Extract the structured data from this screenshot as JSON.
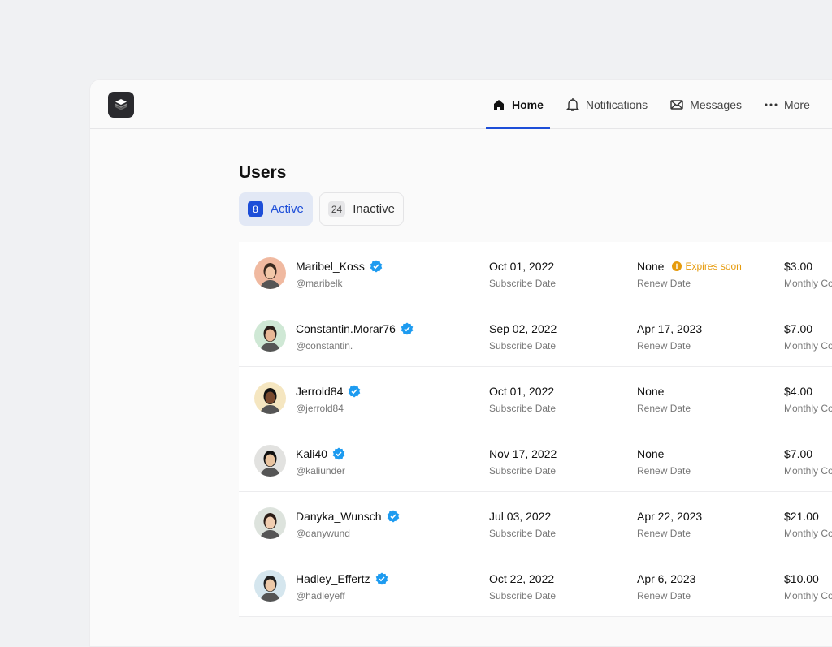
{
  "nav": {
    "items": [
      {
        "label": "Home",
        "icon": "home-icon",
        "active": true
      },
      {
        "label": "Notifications",
        "icon": "bell-icon"
      },
      {
        "label": "Messages",
        "icon": "envelope-icon"
      },
      {
        "label": "More",
        "icon": "more-icon"
      }
    ]
  },
  "page": {
    "title": "Users"
  },
  "tabs": [
    {
      "count": "8",
      "label": "Active",
      "active": true
    },
    {
      "count": "24",
      "label": "Inactive"
    }
  ],
  "columns": {
    "subscribe": "Subscribe Date",
    "renew": "Renew Date",
    "cost": "Monthly Cost"
  },
  "expires_label": "Expires soon",
  "colors": {
    "accent": "#1d4ed8",
    "verified": "#1d9bf0",
    "warning": "#e69b0d"
  },
  "users": [
    {
      "name": "Maribel_Koss",
      "handle": "@maribelk",
      "subscribe": "Oct 01, 2022",
      "renew": "None",
      "expires": true,
      "cost": "$3.00",
      "avatar_bg": "#f0b9a0"
    },
    {
      "name": "Constantin.Morar76",
      "handle": "@constantin.",
      "subscribe": "Sep 02, 2022",
      "renew": "Apr 17, 2023",
      "cost": "$7.00",
      "avatar_bg": "#cfe8d5"
    },
    {
      "name": "Jerrold84",
      "handle": "@jerrold84",
      "subscribe": "Oct 01, 2022",
      "renew": "None",
      "cost": "$4.00",
      "avatar_bg": "#f5e6c0"
    },
    {
      "name": "Kali40",
      "handle": "@kaliunder",
      "subscribe": "Nov 17, 2022",
      "renew": "None",
      "cost": "$7.00",
      "avatar_bg": "#e2e2e0"
    },
    {
      "name": "Danyka_Wunsch",
      "handle": "@danywund",
      "subscribe": "Jul 03, 2022",
      "renew": "Apr 22, 2023",
      "cost": "$21.00",
      "avatar_bg": "#dde3dd"
    },
    {
      "name": "Hadley_Effertz",
      "handle": "@hadleyeff",
      "subscribe": "Oct 22, 2022",
      "renew": "Apr 6, 2023",
      "cost": "$10.00",
      "avatar_bg": "#d5e6ee"
    }
  ]
}
